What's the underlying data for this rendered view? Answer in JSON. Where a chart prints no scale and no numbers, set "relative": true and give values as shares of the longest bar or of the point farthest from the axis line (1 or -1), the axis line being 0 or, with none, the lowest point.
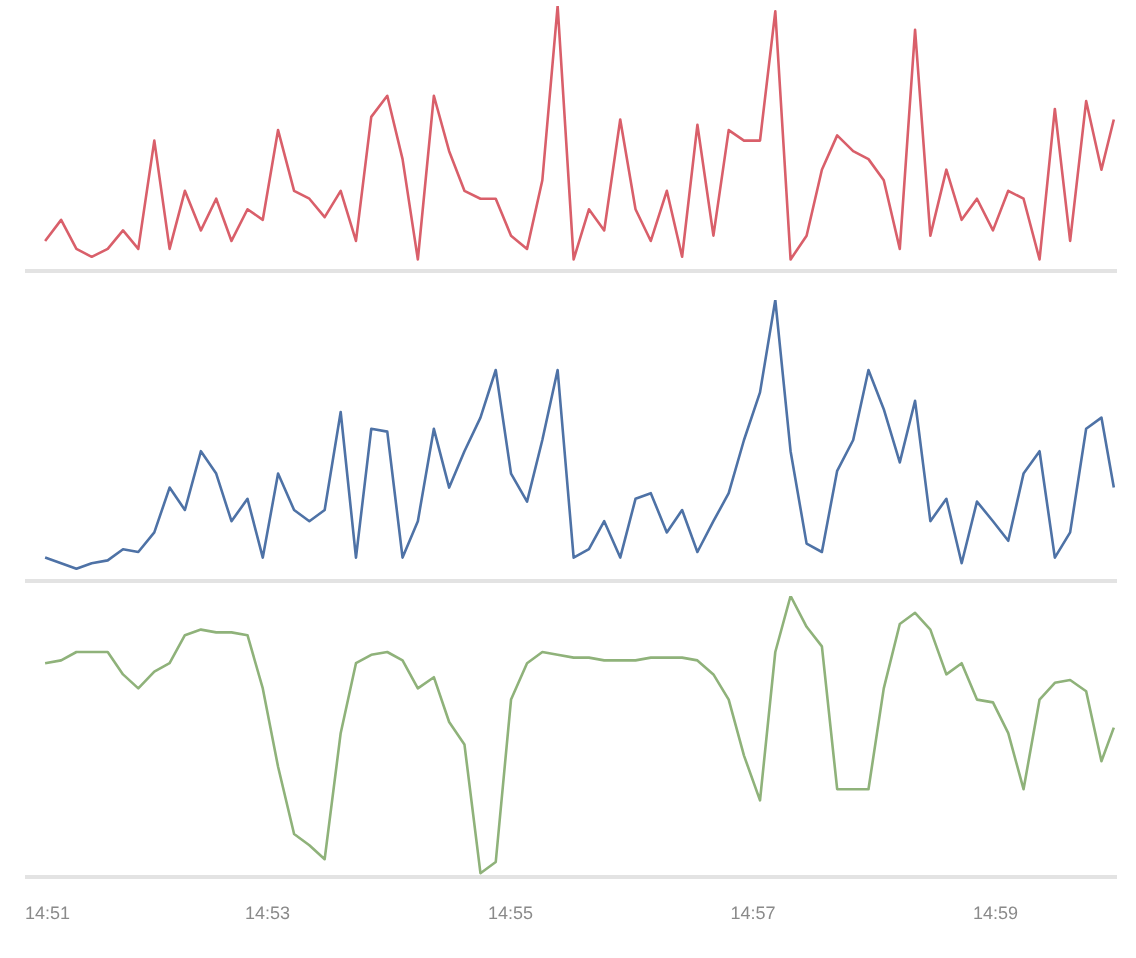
{
  "chart_data": [
    {
      "type": "line",
      "relative": true,
      "xlim": [
        14.85,
        15.0
      ],
      "tick_labels": false,
      "x": [
        14.8529,
        14.8551,
        14.8572,
        14.8593,
        14.8615,
        14.8636,
        14.8657,
        14.8679,
        14.87,
        14.8721,
        14.8743,
        14.8764,
        14.8785,
        14.8807,
        14.8828,
        14.8849,
        14.8871,
        14.8892,
        14.8913,
        14.8935,
        14.8956,
        14.8977,
        14.8999,
        14.902,
        14.9041,
        14.9063,
        14.9084,
        14.9105,
        14.9127,
        14.9148,
        14.9169,
        14.9191,
        14.9212,
        14.9233,
        14.9255,
        14.9276,
        14.9297,
        14.9319,
        14.934,
        14.9361,
        14.9383,
        14.9404,
        14.9425,
        14.9447,
        14.9468,
        14.9489,
        14.9511,
        14.9532,
        14.9553,
        14.9575,
        14.9596,
        14.9617,
        14.9639,
        14.966,
        14.9681,
        14.9703,
        14.9724,
        14.9745,
        14.9767,
        14.9788,
        14.9809,
        14.9831,
        14.9852,
        14.9873,
        14.9895,
        14.9916,
        14.9937,
        14.9959,
        14.998,
        14.9997
      ],
      "series": [
        {
          "color": "#d95f6a",
          "values": [
            0.11,
            0.19,
            0.08,
            0.05,
            0.08,
            0.15,
            0.08,
            0.49,
            0.08,
            0.3,
            0.15,
            0.27,
            0.11,
            0.23,
            0.19,
            0.53,
            0.3,
            0.27,
            0.2,
            0.3,
            0.11,
            0.58,
            0.66,
            0.42,
            0.04,
            0.66,
            0.45,
            0.3,
            0.27,
            0.27,
            0.13,
            0.08,
            0.34,
            1,
            0.04,
            0.23,
            0.15,
            0.57,
            0.23,
            0.11,
            0.3,
            0.05,
            0.55,
            0.13,
            0.53,
            0.49,
            0.49,
            0.98,
            0.04,
            0.13,
            0.38,
            0.51,
            0.45,
            0.42,
            0.34,
            0.08,
            0.91,
            0.13,
            0.38,
            0.19,
            0.27,
            0.15,
            0.3,
            0.27,
            0.04,
            0.61,
            0.11,
            0.64,
            0.38,
            0.57
          ]
        }
      ]
    },
    {
      "type": "line",
      "relative": true,
      "xlim": [
        14.85,
        15.0
      ],
      "tick_labels": false,
      "x": [
        14.8529,
        14.8551,
        14.8572,
        14.8593,
        14.8615,
        14.8636,
        14.8657,
        14.8679,
        14.87,
        14.8721,
        14.8743,
        14.8764,
        14.8785,
        14.8807,
        14.8828,
        14.8849,
        14.8871,
        14.8892,
        14.8913,
        14.8935,
        14.8956,
        14.8977,
        14.8999,
        14.902,
        14.9041,
        14.9063,
        14.9084,
        14.9105,
        14.9127,
        14.9148,
        14.9169,
        14.9191,
        14.9212,
        14.9233,
        14.9255,
        14.9276,
        14.9297,
        14.9319,
        14.934,
        14.9361,
        14.9383,
        14.9404,
        14.9425,
        14.9447,
        14.9468,
        14.9489,
        14.9511,
        14.9532,
        14.9553,
        14.9575,
        14.9596,
        14.9617,
        14.9639,
        14.966,
        14.9681,
        14.9703,
        14.9724,
        14.9745,
        14.9767,
        14.9788,
        14.9809,
        14.9831,
        14.9852,
        14.9873,
        14.9895,
        14.9916,
        14.9937,
        14.9959,
        14.998,
        14.9997
      ],
      "series": [
        {
          "color": "#4e72a6",
          "values": [
            0.08,
            0.06,
            0.04,
            0.06,
            0.07,
            0.11,
            0.1,
            0.17,
            0.33,
            0.25,
            0.46,
            0.38,
            0.21,
            0.29,
            0.08,
            0.38,
            0.25,
            0.21,
            0.25,
            0.6,
            0.08,
            0.54,
            0.53,
            0.08,
            0.21,
            0.54,
            0.33,
            0.46,
            0.58,
            0.75,
            0.38,
            0.28,
            0.5,
            0.75,
            0.08,
            0.11,
            0.21,
            0.08,
            0.29,
            0.31,
            0.17,
            0.25,
            0.1,
            0.21,
            0.31,
            0.5,
            0.67,
            1,
            0.46,
            0.13,
            0.1,
            0.39,
            0.5,
            0.75,
            0.61,
            0.42,
            0.64,
            0.21,
            0.29,
            0.06,
            0.28,
            0.21,
            0.14,
            0.38,
            0.46,
            0.08,
            0.17,
            0.54,
            0.58,
            0.33
          ]
        }
      ]
    },
    {
      "type": "line",
      "relative": true,
      "xlim": [
        14.85,
        15.0
      ],
      "tick_labels": "x",
      "xticks": [
        {
          "value": 14.85,
          "label": "14:51"
        },
        {
          "value": 14.8833,
          "label": "14:53"
        },
        {
          "value": 14.9167,
          "label": "14:55"
        },
        {
          "value": 14.95,
          "label": "14:57"
        },
        {
          "value": 14.9833,
          "label": "14:59"
        }
      ],
      "x": [
        14.8529,
        14.8551,
        14.8572,
        14.8593,
        14.8615,
        14.8636,
        14.8657,
        14.8679,
        14.87,
        14.8721,
        14.8743,
        14.8764,
        14.8785,
        14.8807,
        14.8828,
        14.8849,
        14.8871,
        14.8892,
        14.8913,
        14.8935,
        14.8956,
        14.8977,
        14.8999,
        14.902,
        14.9041,
        14.9063,
        14.9084,
        14.9105,
        14.9127,
        14.9148,
        14.9169,
        14.9191,
        14.9212,
        14.9233,
        14.9255,
        14.9276,
        14.9297,
        14.9319,
        14.934,
        14.9361,
        14.9383,
        14.9404,
        14.9425,
        14.9447,
        14.9468,
        14.9489,
        14.9511,
        14.9532,
        14.9553,
        14.9575,
        14.9596,
        14.9617,
        14.9639,
        14.966,
        14.9681,
        14.9703,
        14.9724,
        14.9745,
        14.9767,
        14.9788,
        14.9809,
        14.9831,
        14.9852,
        14.9873,
        14.9895,
        14.9916,
        14.9937,
        14.9959,
        14.998,
        14.9997
      ],
      "series": [
        {
          "color": "#8fb27a",
          "values": [
            0.76,
            0.77,
            0.8,
            0.8,
            0.8,
            0.72,
            0.67,
            0.73,
            0.76,
            0.86,
            0.88,
            0.87,
            0.87,
            0.86,
            0.67,
            0.39,
            0.15,
            0.11,
            0.06,
            0.51,
            0.76,
            0.79,
            0.8,
            0.77,
            0.67,
            0.71,
            0.55,
            0.47,
            0.01,
            0.05,
            0.63,
            0.76,
            0.8,
            0.79,
            0.78,
            0.78,
            0.77,
            0.77,
            0.77,
            0.78,
            0.78,
            0.78,
            0.77,
            0.72,
            0.63,
            0.43,
            0.27,
            0.8,
            1,
            0.89,
            0.82,
            0.31,
            0.31,
            0.31,
            0.67,
            0.9,
            0.94,
            0.88,
            0.72,
            0.76,
            0.63,
            0.62,
            0.51,
            0.31,
            0.63,
            0.69,
            0.7,
            0.66,
            0.41,
            0.53
          ]
        }
      ]
    }
  ]
}
